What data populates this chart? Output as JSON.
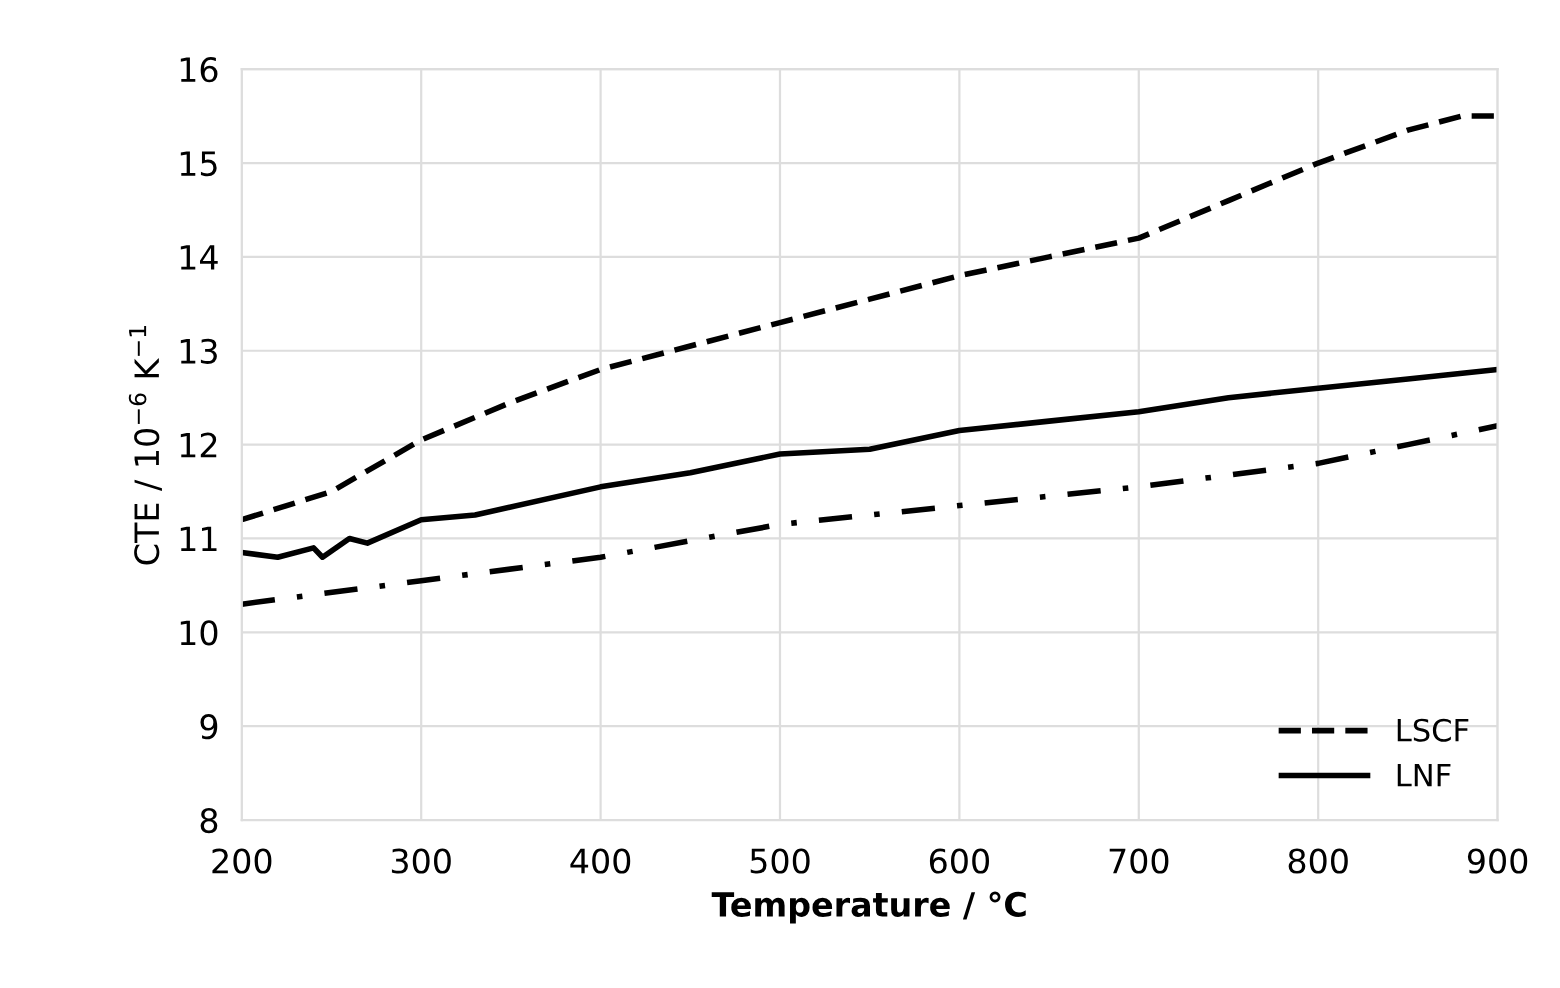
{
  "chart_data": {
    "type": "line",
    "xlabel": "Temperature / °C",
    "ylabel": "CTE / 10$^{−6}$ K$^{−1}$",
    "xlim": [
      200,
      900
    ],
    "xticks": [
      200,
      300,
      400,
      500,
      600,
      700,
      800,
      900
    ],
    "ylim": [
      8,
      16
    ],
    "yticks": [
      8,
      9,
      10,
      11,
      12,
      13,
      14,
      15,
      16
    ],
    "grid": true,
    "legend": "bottom right",
    "series": [
      {
        "name": "LSCF",
        "color": "#000000",
        "line_style": "dashed",
        "x": [
          200,
          250,
          300,
          350,
          400,
          450,
          500,
          550,
          600,
          650,
          700,
          750,
          800,
          850,
          880,
          900
        ],
        "values": [
          11.2,
          11.5,
          12.05,
          12.45,
          12.8,
          13.05,
          13.3,
          13.55,
          13.8,
          14.0,
          14.2,
          14.6,
          15.0,
          15.35,
          15.5,
          15.5
        ]
      },
      {
        "name": "LNF",
        "color": "#000000",
        "line_style": "solid",
        "x": [
          200,
          220,
          240,
          245,
          260,
          270,
          300,
          330,
          400,
          450,
          500,
          550,
          600,
          650,
          700,
          750,
          800,
          850,
          900
        ],
        "values": [
          10.85,
          10.8,
          10.9,
          10.8,
          11.0,
          10.95,
          11.2,
          11.25,
          11.55,
          11.7,
          11.9,
          11.95,
          12.15,
          12.25,
          12.35,
          12.5,
          12.6,
          12.7,
          12.8
        ]
      },
      {
        "color": "#000000",
        "line_style": "dashdot",
        "x": [
          200,
          300,
          400,
          500,
          600,
          700,
          800,
          850,
          900
        ],
        "values": [
          10.3,
          10.55,
          10.8,
          11.15,
          11.35,
          11.55,
          11.8,
          12.0,
          12.2
        ]
      }
    ]
  }
}
